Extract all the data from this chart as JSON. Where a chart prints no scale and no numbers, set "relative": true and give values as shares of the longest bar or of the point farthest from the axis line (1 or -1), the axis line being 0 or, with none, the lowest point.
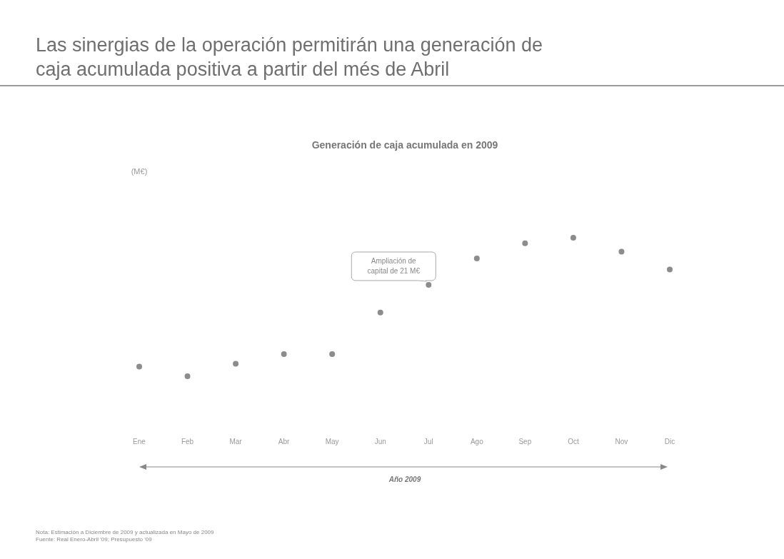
{
  "chart_data": {
    "type": "scatter",
    "title": "Las sinergias de la operación permitirán una generación de caja acumulada positiva a partir del més de Abril",
    "subtitle": "Generación de caja acumulada en 2009",
    "xlabel": "Año 2009",
    "relative": true,
    "marker": "circle",
    "categories": [
      "Ene",
      "Feb",
      "Mar",
      "Abr",
      "May",
      "Jun",
      "Jul",
      "Ago",
      "Sep",
      "Oct",
      "Nov",
      "Dic"
    ],
    "series": [
      {
        "color": "#8c8c8c",
        "values": [
          0.07,
          0,
          0.09,
          0.16,
          0.16,
          0.46,
          0.66,
          0.85,
          0.96,
          1,
          0.9,
          0.77
        ]
      }
    ],
    "annotations": [
      {
        "text": "Ampliación de capital de 21 M€",
        "x": "Jul",
        "y": 0.66
      },
      "(M€)",
      "Nota: Estimación a Diciembre de 2009 y actualizada en Mayo de 2009",
      "Fuente: Real Enero-Abril '09; Presupuesto '09"
    ]
  }
}
